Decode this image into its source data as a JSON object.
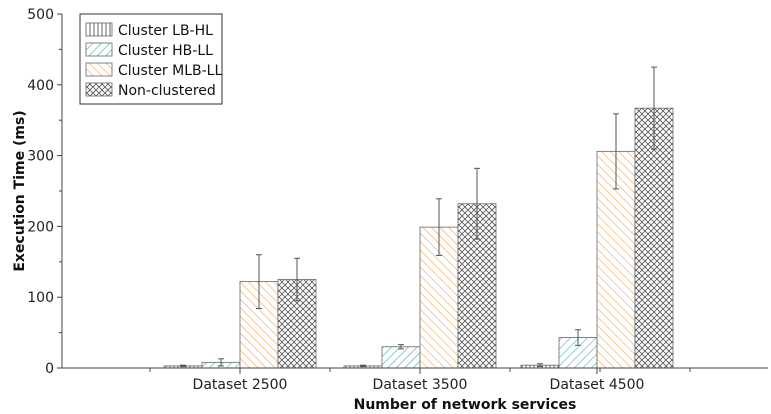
{
  "chart_data": {
    "type": "bar",
    "title": "",
    "xlabel": "Number of network services",
    "ylabel": "Execution Time (ms)",
    "ylim": [
      0,
      500
    ],
    "yticks": [
      0,
      100,
      200,
      300,
      400,
      500
    ],
    "categories": [
      "Dataset 2500",
      "Dataset 3500",
      "Dataset 4500"
    ],
    "legend_position": "top-left",
    "error_bars": true,
    "series": [
      {
        "name": "Cluster LB-HL",
        "pattern": "vertical-lines",
        "color": "#555555",
        "values": [
          3,
          3,
          4
        ],
        "errors": [
          1,
          1,
          2
        ]
      },
      {
        "name": "Cluster HB-LL",
        "pattern": "diagonal-lines",
        "color": "#3aa6a0",
        "values": [
          8,
          30,
          43
        ],
        "errors": [
          5,
          3,
          11
        ]
      },
      {
        "name": "Cluster MLB-LL",
        "pattern": "diagonal-lines",
        "color": "#f0a050",
        "values": [
          122,
          199,
          306
        ],
        "errors": [
          38,
          40,
          53
        ]
      },
      {
        "name": "Non-clustered",
        "pattern": "crosshatch",
        "color": "#555555",
        "values": [
          125,
          232,
          367
        ],
        "errors": [
          30,
          50,
          58
        ]
      }
    ]
  }
}
